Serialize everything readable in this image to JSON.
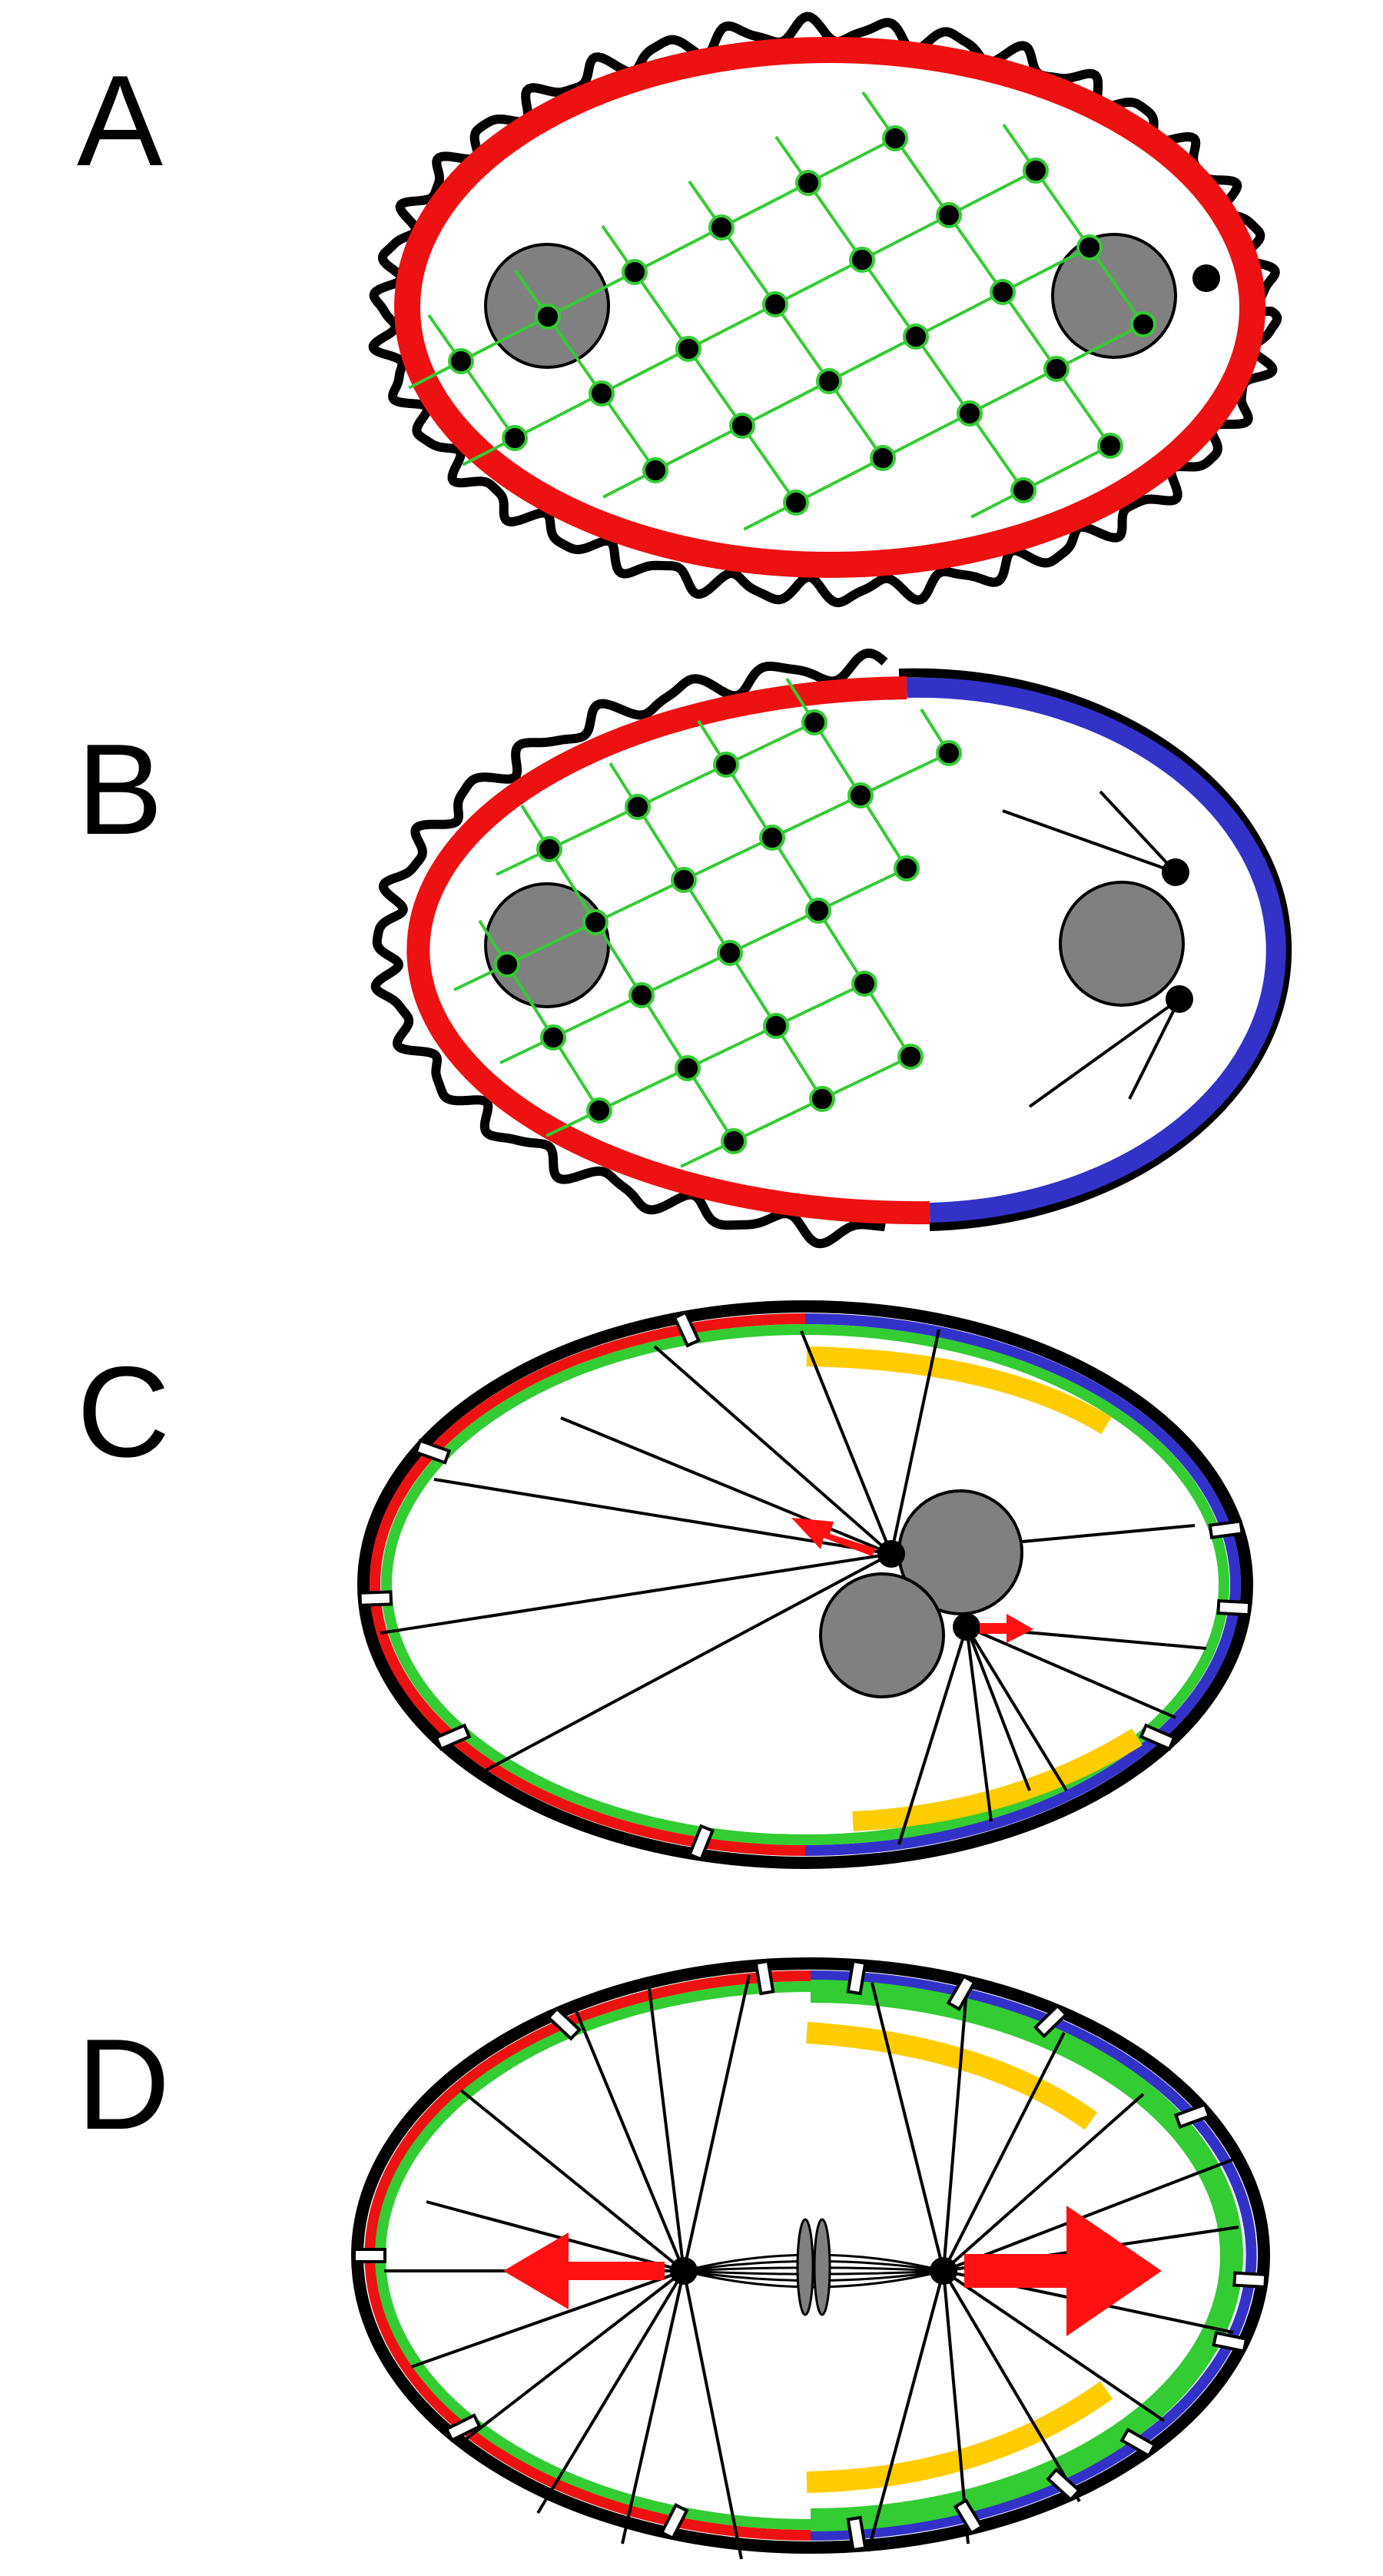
{
  "panels": [
    {
      "id": "A",
      "label": "A"
    },
    {
      "id": "B",
      "label": "B"
    },
    {
      "id": "C",
      "label": "C"
    },
    {
      "id": "D",
      "label": "D"
    }
  ],
  "colors": {
    "cortex_outline": "#000000",
    "red_cortex": "#ee1111",
    "blue_cortex": "#3232c8",
    "green_network": "#33cc33",
    "yellow_patch": "#ffcc00",
    "nucleus": "#808080",
    "force_arrow": "#ff1111",
    "background": "#ffffff"
  }
}
